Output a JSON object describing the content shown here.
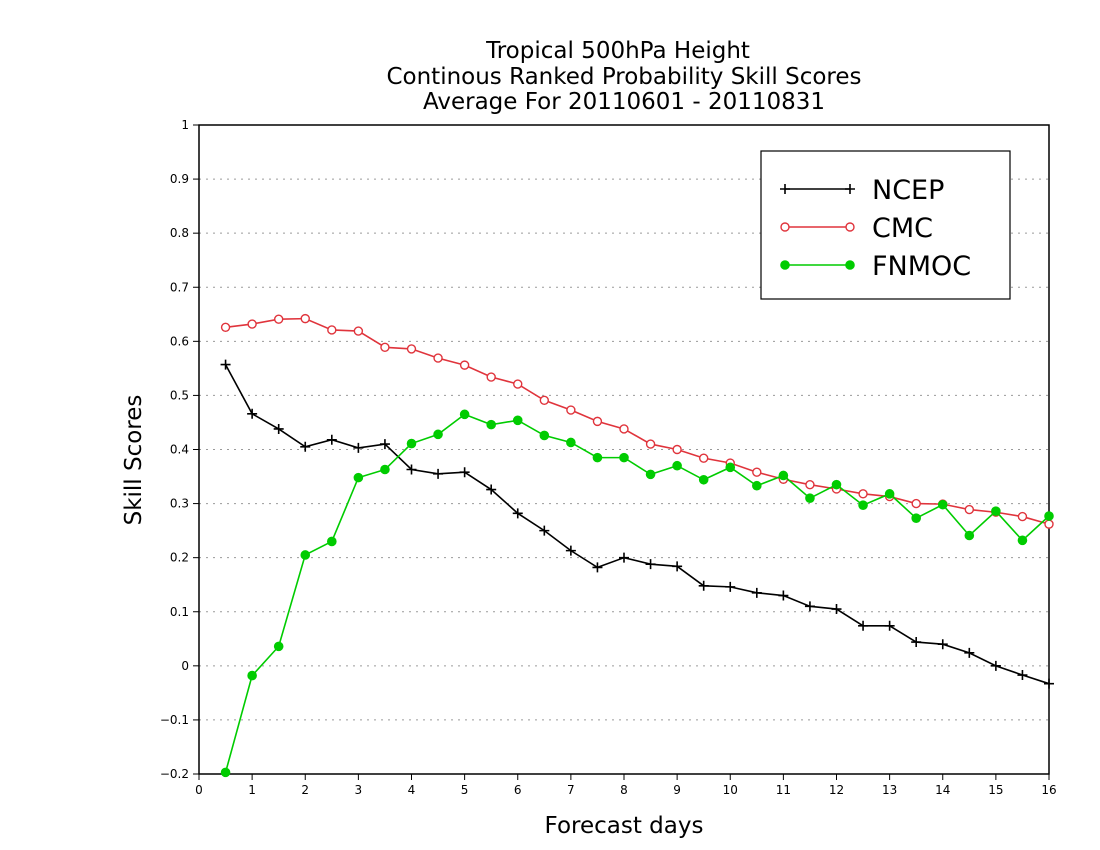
{
  "chart_data": {
    "type": "line",
    "title": [
      "Tropical 500hPa Height",
      "Continous Ranked Probability Skill Scores",
      "Average For 20110601 - 20110831"
    ],
    "xlabel": "Forecast days",
    "ylabel": "Skill Scores",
    "xlim": [
      0,
      16
    ],
    "ylim": [
      -0.2,
      1
    ],
    "xticks": [
      "0",
      "1",
      "2",
      "3",
      "4",
      "5",
      "6",
      "7",
      "8",
      "9",
      "10",
      "11",
      "12",
      "13",
      "14",
      "15",
      "16"
    ],
    "yticks": [
      "−0.2",
      "−0.1",
      "0",
      "0.1",
      "0.2",
      "0.3",
      "0.4",
      "0.5",
      "0.6",
      "0.7",
      "0.8",
      "0.9",
      "1"
    ],
    "grid": "horizontal dotted",
    "legend_position": "top-right",
    "x": [
      0.5,
      1,
      1.5,
      2,
      2.5,
      3,
      3.5,
      4,
      4.5,
      5,
      5.5,
      6,
      6.5,
      7,
      7.5,
      8,
      8.5,
      9,
      9.5,
      10,
      10.5,
      11,
      11.5,
      12,
      12.5,
      13,
      13.5,
      14,
      14.5,
      15,
      15.5,
      16
    ],
    "series": [
      {
        "name": "NCEP",
        "color": "#000000",
        "marker": "plus",
        "values": [
          0.557,
          0.466,
          0.438,
          0.405,
          0.418,
          0.403,
          0.41,
          0.363,
          0.355,
          0.358,
          0.326,
          0.282,
          0.25,
          0.213,
          0.182,
          0.2,
          0.188,
          0.184,
          0.148,
          0.146,
          0.135,
          0.13,
          0.11,
          0.105,
          0.074,
          0.074,
          0.044,
          0.04,
          0.024,
          0.0,
          -0.017,
          -0.033
        ]
      },
      {
        "name": "CMC",
        "color": "#e0343c",
        "marker": "open-circle",
        "values": [
          0.626,
          0.632,
          0.641,
          0.642,
          0.621,
          0.619,
          0.589,
          0.586,
          0.569,
          0.556,
          0.534,
          0.521,
          0.491,
          0.473,
          0.452,
          0.438,
          0.41,
          0.4,
          0.384,
          0.375,
          0.358,
          0.345,
          0.335,
          0.327,
          0.318,
          0.313,
          0.3,
          0.299,
          0.289,
          0.284,
          0.276,
          0.262
        ]
      },
      {
        "name": "FNMOC",
        "color": "#00cc00",
        "marker": "filled-circle",
        "values": [
          -0.197,
          -0.018,
          0.036,
          0.205,
          0.23,
          0.348,
          0.363,
          0.411,
          0.428,
          0.465,
          0.446,
          0.454,
          0.426,
          0.413,
          0.385,
          0.385,
          0.354,
          0.37,
          0.344,
          0.367,
          0.333,
          0.352,
          0.31,
          0.335,
          0.297,
          0.318,
          0.273,
          0.298,
          0.241,
          0.286,
          0.232,
          0.277
        ]
      }
    ]
  }
}
